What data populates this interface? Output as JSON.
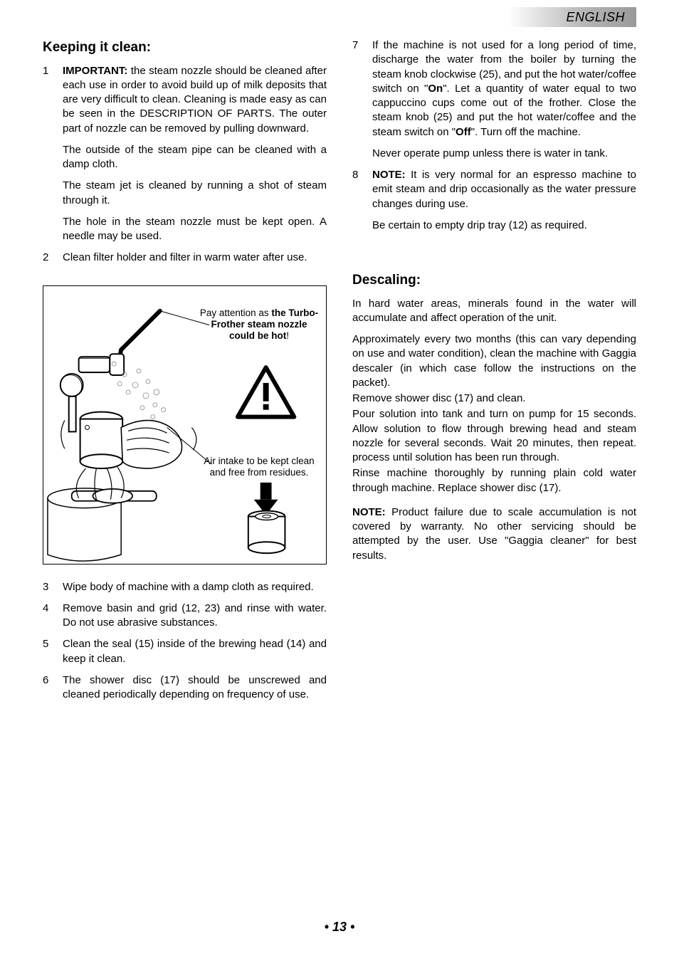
{
  "header": {
    "language": "ENGLISH"
  },
  "left": {
    "heading": "Keeping it clean:",
    "items": [
      {
        "n": "1",
        "html": "<span class='b'>IMPORTANT:</span> the steam nozzle should be cleaned after each use in order to avoid build up of milk deposits that are very difficult to clean. Cleaning is made easy as can be seen in the DESCRIPTION OF PARTS. The outer part of nozzle can be removed by pulling downward."
      }
    ],
    "paras_after_1": [
      "The outside of the steam pipe can be cleaned with a damp cloth.",
      "The steam jet is cleaned by running a shot of steam through it.",
      "The hole in the steam nozzle must be kept open. A needle may be used."
    ],
    "item2": {
      "n": "2",
      "text": "Clean filter holder and filter in warm water after use."
    },
    "diagram": {
      "caption_top_pre": "Pay attention as ",
      "caption_top_bold": "the Turbo-Frother steam nozzle could be hot",
      "caption_top_post": "!",
      "caption_bot": "Air intake to be kept clean and free from residues.",
      "warning_stroke": "#000000",
      "warning_fill": "#ffffff"
    },
    "items_lower": [
      {
        "n": "3",
        "text": "Wipe body of machine with a damp cloth as required."
      },
      {
        "n": "4",
        "text": "Remove basin and grid (12, 23) and rinse with water. Do not use abrasive substances."
      },
      {
        "n": "5",
        "text": "Clean the seal (15) inside of the brewing head (14) and keep it clean."
      },
      {
        "n": "6",
        "text": "The shower disc (17) should be unscrewed and cleaned periodically depending on frequency of use."
      }
    ]
  },
  "right": {
    "items_top": [
      {
        "n": "7",
        "html": "If the machine is not used for a long period of time, discharge the water from the boiler by turning the steam knob clockwise (25), and put the hot water/coffee switch on \"<span class='b'>On</span>\". Let a quantity of water equal to two cappuccino cups come out of the frother. Close the steam knob (25) and put the hot water/coffee and the steam switch on \"<span class='b'>Off</span>\". Turn off the machine."
      }
    ],
    "para_after_7": "Never operate pump unless there is water in tank.",
    "item8": {
      "n": "8",
      "html": "<span class='b'>NOTE:</span> It is very normal for an espresso machine to emit steam and drip occasionally as the water pressure changes during use."
    },
    "para_after_8": "Be certain to empty drip tray (12) as required.",
    "descaling": {
      "heading": "Descaling:",
      "paras": [
        "In hard water areas, minerals found in the water will accumulate and affect operation of the unit.",
        "Approximately every two months (this can vary depending on use and water condition), clean the machine with Gaggia descaler (in which case follow the instructions on the packet).",
        "Remove shower disc (17) and clean."
      ],
      "para_flow": "Pour solution into tank and turn on pump for 15 seconds. Allow solution to flow through brewing head and steam nozzle for several seconds. Wait 20 minutes, then repeat. process until solution has been run through.",
      "para_rinse": "Rinse machine thoroughly by running plain cold water through machine. Replace shower disc (17).",
      "note_html": "<span class='b'>NOTE:</span> Product failure due to scale accumulation is not covered by warranty. No other servicing should be attempted by the user. Use \"Gaggia cleaner\" for best results."
    }
  },
  "footer": {
    "page": "• 13 •"
  }
}
